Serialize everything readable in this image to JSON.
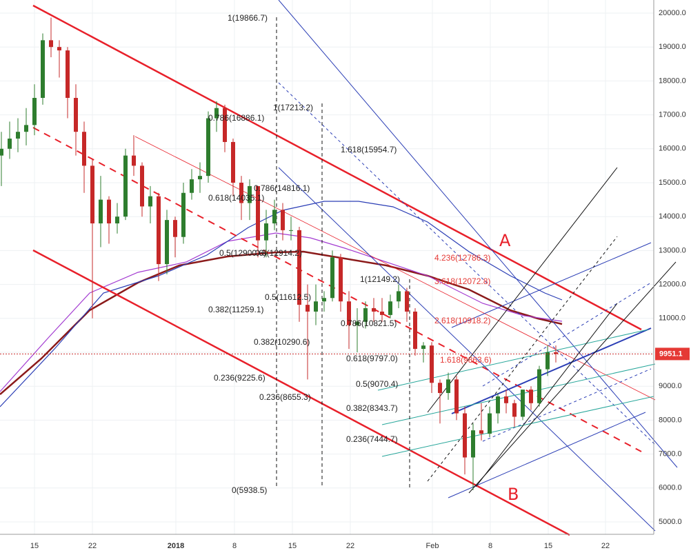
{
  "chart_data": {
    "type": "candlestick",
    "up_color": "#2e7d2e",
    "down_color": "#c62828",
    "ylim": [
      4634,
      20386
    ],
    "yticks": [
      {
        "value": 20000,
        "label": "20000.0"
      },
      {
        "value": 19000,
        "label": "19000.0"
      },
      {
        "value": 18000,
        "label": "18000.0"
      },
      {
        "value": 17000,
        "label": "17000.0"
      },
      {
        "value": 16000,
        "label": "16000.0"
      },
      {
        "value": 15000,
        "label": "15000.0"
      },
      {
        "value": 14000,
        "label": "14000.0"
      },
      {
        "value": 13000,
        "label": "13000.0"
      },
      {
        "value": 12000,
        "label": "12000.0"
      },
      {
        "value": 11000,
        "label": "11000.0"
      },
      {
        "value": 10000,
        "label": "10000.0"
      },
      {
        "value": 9000,
        "label": "9000.0"
      },
      {
        "value": 8000,
        "label": "8000.0"
      },
      {
        "value": 7000,
        "label": "7000.0"
      },
      {
        "value": 6000,
        "label": "6000.0"
      },
      {
        "value": 5000,
        "label": "5000.0"
      }
    ],
    "x_labels": [
      "15",
      "22",
      "2018",
      "8",
      "15",
      "22",
      "Feb",
      "8",
      "15",
      "22"
    ],
    "grid": true,
    "last_price": 9951.1,
    "ohlc": [
      [
        15800,
        16500,
        14900,
        16000
      ],
      [
        16000,
        16800,
        15700,
        16300
      ],
      [
        16300,
        16900,
        15900,
        16500
      ],
      [
        16500,
        17200,
        16100,
        16700
      ],
      [
        16700,
        17900,
        16400,
        17500
      ],
      [
        17500,
        19400,
        17300,
        19200
      ],
      [
        19200,
        19866.7,
        18700,
        19000
      ],
      [
        19000,
        19200,
        18100,
        18900
      ],
      [
        18900,
        19000,
        16900,
        17500
      ],
      [
        17500,
        17900,
        15800,
        16500
      ],
      [
        16500,
        16800,
        14700,
        15500
      ],
      [
        15500,
        15700,
        11000,
        13800
      ],
      [
        13800,
        15200,
        13100,
        14500
      ],
      [
        14500,
        14600,
        13200,
        13800
      ],
      [
        13800,
        14400,
        13500,
        14000
      ],
      [
        14000,
        16000,
        13900,
        15800
      ],
      [
        15800,
        16400,
        15200,
        15500
      ],
      [
        15500,
        15600,
        14000,
        14300
      ],
      [
        14300,
        14900,
        13800,
        14600
      ],
      [
        14600,
        14700,
        12100,
        12600
      ],
      [
        12600,
        14200,
        12300,
        13900
      ],
      [
        13900,
        14000,
        12800,
        13400
      ],
      [
        13400,
        15000,
        13200,
        14700
      ],
      [
        14700,
        15400,
        14500,
        15100
      ],
      [
        15100,
        15600,
        14700,
        15200
      ],
      [
        15200,
        17100,
        15000,
        16900
      ],
      [
        16900,
        17400,
        16500,
        17200
      ],
      [
        17200,
        17300,
        15900,
        16200
      ],
      [
        16200,
        16300,
        14600,
        15000
      ],
      [
        15000,
        15200,
        13900,
        14400
      ],
      [
        14400,
        15100,
        13900,
        14900
      ],
      [
        14900,
        14900,
        12800,
        13300
      ],
      [
        13300,
        14200,
        12800,
        13800
      ],
      [
        13800,
        14500,
        13600,
        14200
      ],
      [
        14200,
        14400,
        13300,
        13600
      ],
      [
        13600,
        14000,
        13300,
        13600
      ],
      [
        13600,
        13700,
        10900,
        11400
      ],
      [
        11400,
        12000,
        9200,
        11200
      ],
      [
        11200,
        12000,
        10800,
        11500
      ],
      [
        11500,
        11800,
        11200,
        11600
      ],
      [
        11600,
        13000,
        11500,
        12800
      ],
      [
        12800,
        12900,
        11200,
        11500
      ],
      [
        11500,
        11800,
        10100,
        10800
      ],
      [
        10800,
        11300,
        10000,
        10900
      ],
      [
        10900,
        11500,
        10700,
        11300
      ],
      [
        11300,
        11600,
        10900,
        11200
      ],
      [
        11200,
        11600,
        10900,
        11100
      ],
      [
        11100,
        11700,
        11000,
        11500
      ],
      [
        11500,
        12000,
        11300,
        11800
      ],
      [
        11800,
        11900,
        10900,
        11200
      ],
      [
        11200,
        11300,
        9900,
        10100
      ],
      [
        10100,
        10300,
        9700,
        10200
      ],
      [
        10200,
        10300,
        8800,
        9100
      ],
      [
        9100,
        9200,
        7900,
        8800
      ],
      [
        8800,
        9400,
        8600,
        9200
      ],
      [
        9200,
        9300,
        8000,
        8200
      ],
      [
        8200,
        8400,
        6400,
        6900
      ],
      [
        6900,
        7900,
        5938.5,
        7700
      ],
      [
        7700,
        8500,
        7400,
        7600
      ],
      [
        7600,
        8400,
        7500,
        8200
      ],
      [
        8200,
        8800,
        7900,
        8700
      ],
      [
        8700,
        8900,
        8200,
        8500
      ],
      [
        8500,
        8600,
        7800,
        8100
      ],
      [
        8100,
        8900,
        8000,
        8900
      ],
      [
        8900,
        9000,
        8300,
        8500
      ],
      [
        8500,
        9600,
        8400,
        9500
      ],
      [
        9500,
        10200,
        9300,
        10000
      ],
      [
        10000,
        10200,
        9700,
        9951.1
      ]
    ],
    "annotations": [
      {
        "text": "1(19866.7)",
        "color": "#222"
      },
      {
        "text": "1(17213.2)",
        "color": "#222"
      },
      {
        "text": "0.786(16886.1)",
        "color": "#222"
      },
      {
        "text": "1.618(15954.7)",
        "color": "#222"
      },
      {
        "text": "0.786(14816.1)",
        "color": "#222"
      },
      {
        "text": "0.618(14035.1)",
        "color": "#222"
      },
      {
        "text": "0.5(12900.6)",
        "color": "#222"
      },
      {
        "text": "0.5(12914.2)",
        "color": "#222"
      },
      {
        "text": "4.236(12786.3)",
        "color": "#e53935"
      },
      {
        "text": "1(12149.2)",
        "color": "#222"
      },
      {
        "text": "3.618(12072.8)",
        "color": "#e53935"
      },
      {
        "text": "0.5(11612.5)",
        "color": "#222"
      },
      {
        "text": "0.382(11259.1)",
        "color": "#222"
      },
      {
        "text": "0.786(10821.5)",
        "color": "#222"
      },
      {
        "text": "2.618(10918.2)",
        "color": "#e53935"
      },
      {
        "text": "0.382(10290.6)",
        "color": "#222"
      },
      {
        "text": "0.618(9797.0)",
        "color": "#222"
      },
      {
        "text": "1.618(9863.6)",
        "color": "#e53935"
      },
      {
        "text": "0.236(9225.6)",
        "color": "#222"
      },
      {
        "text": "0.5(9070.4)",
        "color": "#222"
      },
      {
        "text": "0.236(8655.3)",
        "color": "#222"
      },
      {
        "text": "0.382(8343.7)",
        "color": "#222"
      },
      {
        "text": "0.236(7444.7)",
        "color": "#222"
      },
      {
        "text": "0(5938.5)",
        "color": "#222"
      }
    ],
    "labels": [
      "A",
      "B"
    ]
  }
}
